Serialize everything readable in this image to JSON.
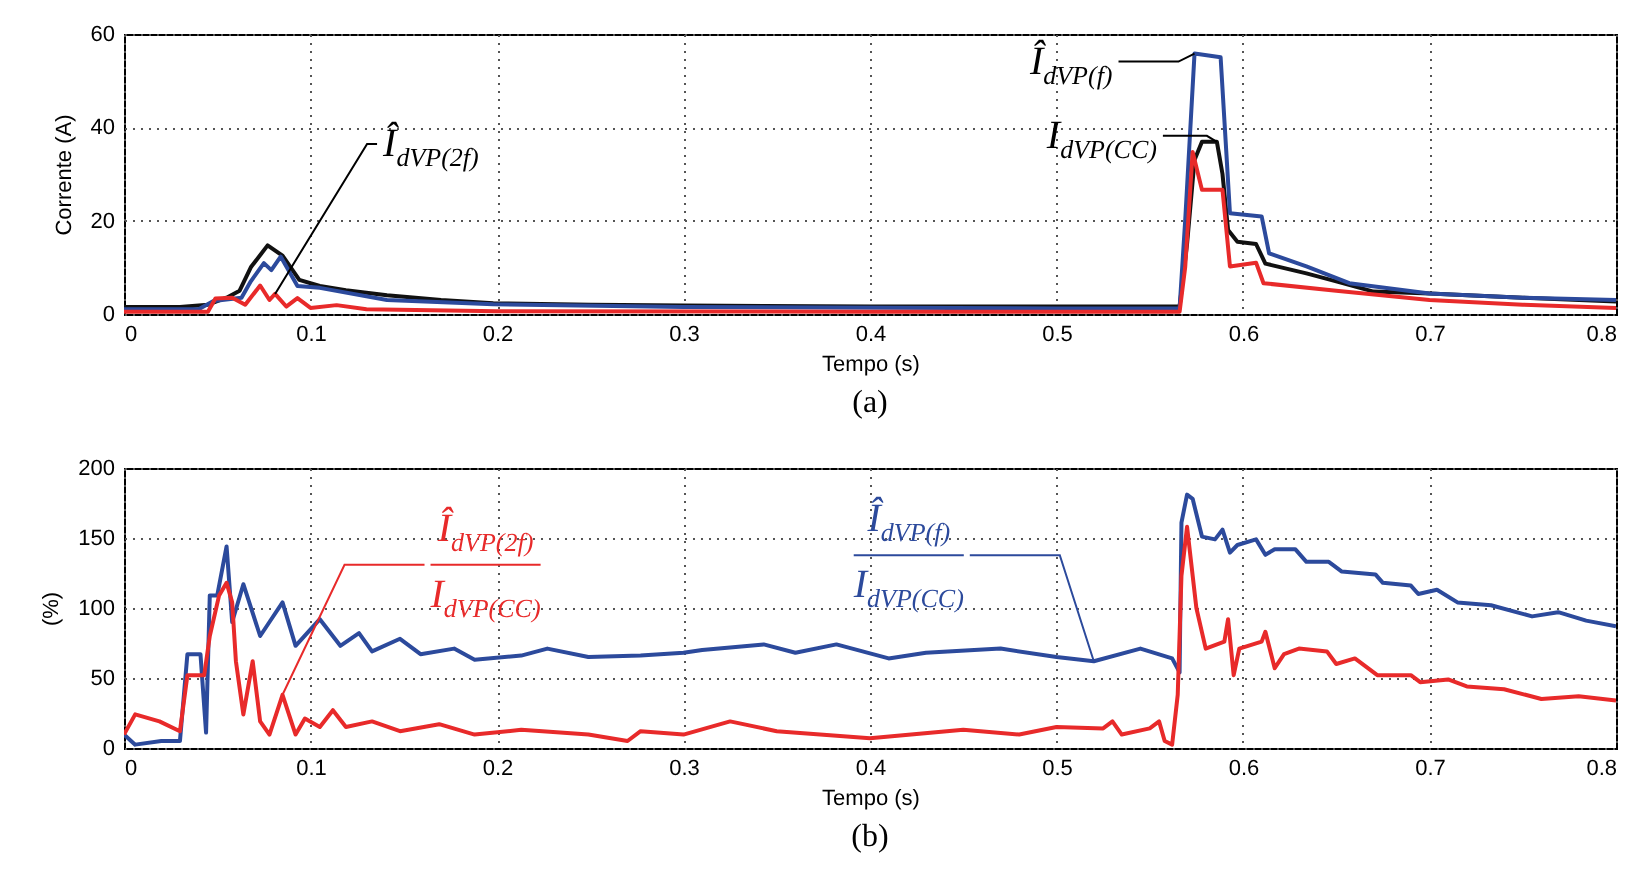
{
  "chart_data": [
    {
      "type": "line",
      "title": "(a)",
      "xlabel": "Tempo (s)",
      "ylabel": "Corrente (A)",
      "xlim": [
        0,
        0.8
      ],
      "ylim": [
        0,
        60
      ],
      "xticks": [
        0,
        0.1,
        0.2,
        0.3,
        0.4,
        0.5,
        0.6,
        0.7,
        0.8
      ],
      "yticks": [
        0,
        20,
        40,
        60
      ],
      "grid": true,
      "series": [
        {
          "name": "I$_{dVP(CC)}$",
          "color": "#111111",
          "x": [
            0,
            0.03,
            0.045,
            0.055,
            0.062,
            0.068,
            0.077,
            0.085,
            0.094,
            0.105,
            0.119,
            0.141,
            0.17,
            0.198,
            0.25,
            0.3,
            0.4,
            0.5,
            0.566,
            0.57,
            0.574,
            0.578,
            0.586,
            0.589,
            0.592,
            0.597,
            0.607,
            0.612,
            0.634,
            0.65,
            0.67,
            0.7,
            0.75,
            0.8
          ],
          "values": [
            1.5,
            1.5,
            2,
            3.5,
            5,
            10,
            14.7,
            12.5,
            7.3,
            6,
            5.1,
            4,
            3,
            2.3,
            2,
            1.8,
            1.6,
            1.6,
            1.6,
            15,
            33,
            36.9,
            36.9,
            30,
            18,
            15.5,
            15,
            10.8,
            8.7,
            7,
            4.8,
            4.4,
            3.5,
            2.7
          ]
        },
        {
          "name": "Î$_{dVP(f)}$",
          "color": "#2c4a9c",
          "x": [
            0,
            0.04,
            0.048,
            0.063,
            0.068,
            0.075,
            0.079,
            0.084,
            0.093,
            0.105,
            0.141,
            0.198,
            0.3,
            0.5,
            0.566,
            0.569,
            0.574,
            0.588,
            0.591,
            0.593,
            0.61,
            0.614,
            0.634,
            0.657,
            0.7,
            0.75,
            0.8
          ],
          "values": [
            1,
            1,
            2.8,
            3.5,
            7,
            10.9,
            9.4,
            12.3,
            6,
            5.6,
            3,
            2.1,
            1.5,
            1.2,
            1.2,
            20,
            55.8,
            55,
            35,
            21.6,
            20.9,
            13,
            10.2,
            6.6,
            4.4,
            3.5,
            3
          ]
        },
        {
          "name": "Î$_{dVP(2f)}$",
          "color": "#e82a2a",
          "x": [
            0,
            0.045,
            0.049,
            0.058,
            0.065,
            0.073,
            0.078,
            0.081,
            0.087,
            0.093,
            0.1,
            0.114,
            0.13,
            0.2,
            0.4,
            0.566,
            0.569,
            0.573,
            0.578,
            0.589,
            0.593,
            0.607,
            0.611,
            0.65,
            0.7,
            0.75,
            0.8
          ],
          "values": [
            0.5,
            0.5,
            3.3,
            3.5,
            2,
            6.1,
            3,
            4.3,
            1.6,
            3.4,
            1.3,
            1.9,
            1,
            0.6,
            0.5,
            0.5,
            10,
            34.7,
            26.6,
            26.6,
            10.2,
            11,
            6.6,
            5,
            3,
            2,
            1.3
          ]
        }
      ]
    },
    {
      "type": "line",
      "title": "(b)",
      "xlabel": "Tempo (s)",
      "ylabel": "(%)",
      "xlim": [
        0,
        0.8
      ],
      "ylim": [
        0,
        200
      ],
      "xticks": [
        0,
        0.1,
        0.2,
        0.3,
        0.4,
        0.5,
        0.6,
        0.7,
        0.8
      ],
      "yticks": [
        0,
        50,
        100,
        150,
        200
      ],
      "grid": true,
      "series": [
        {
          "name": "Î$_{dVP(f)}$\nI$_{dVP(CC)}$",
          "color": "#2c4a9c",
          "x": [
            0,
            0.006,
            0.02,
            0.03,
            0.034,
            0.041,
            0.044,
            0.046,
            0.05,
            0.055,
            0.058,
            0.064,
            0.073,
            0.078,
            0.085,
            0.092,
            0.105,
            0.116,
            0.126,
            0.133,
            0.148,
            0.159,
            0.177,
            0.188,
            0.213,
            0.227,
            0.249,
            0.277,
            0.3,
            0.31,
            0.343,
            0.36,
            0.382,
            0.41,
            0.43,
            0.47,
            0.5,
            0.52,
            0.545,
            0.562,
            0.566,
            0.567,
            0.57,
            0.573,
            0.578,
            0.585,
            0.589,
            0.593,
            0.597,
            0.607,
            0.612,
            0.617,
            0.628,
            0.634,
            0.646,
            0.653,
            0.671,
            0.675,
            0.69,
            0.694,
            0.704,
            0.715,
            0.733,
            0.755,
            0.769,
            0.784,
            0.8
          ],
          "values": [
            9.6,
            2.4,
            5,
            5,
            67,
            67,
            11,
            109,
            109,
            144,
            90,
            117,
            80,
            90,
            104,
            73,
            92,
            73,
            82,
            69,
            78,
            67,
            71,
            63,
            66,
            71,
            65,
            66,
            68,
            70,
            74,
            68,
            74,
            64,
            68,
            71,
            65,
            62,
            71,
            64,
            54,
            161,
            181,
            178,
            151,
            149,
            156,
            139.5,
            145,
            149,
            138,
            142,
            142,
            133,
            133,
            126,
            124,
            118,
            116,
            110,
            113,
            104,
            102,
            94,
            97,
            91,
            87
          ]
        },
        {
          "name": "Î$_{dVP(2f)}$\nI$_{dVP(CC)}$",
          "color": "#e82a2a",
          "x": [
            0,
            0.006,
            0.019,
            0.03,
            0.034,
            0.043,
            0.046,
            0.051,
            0.055,
            0.058,
            0.06,
            0.064,
            0.069,
            0.073,
            0.078,
            0.085,
            0.092,
            0.097,
            0.105,
            0.112,
            0.119,
            0.133,
            0.148,
            0.169,
            0.188,
            0.213,
            0.249,
            0.27,
            0.277,
            0.3,
            0.325,
            0.35,
            0.4,
            0.45,
            0.48,
            0.5,
            0.525,
            0.53,
            0.535,
            0.55,
            0.555,
            0.558,
            0.562,
            0.565,
            0.567,
            0.57,
            0.575,
            0.58,
            0.59,
            0.592,
            0.595,
            0.598,
            0.61,
            0.612,
            0.617,
            0.622,
            0.63,
            0.645,
            0.65,
            0.66,
            0.672,
            0.69,
            0.695,
            0.71,
            0.72,
            0.74,
            0.76,
            0.78,
            0.8
          ],
          "values": [
            9.6,
            24,
            19,
            12,
            52,
            52,
            80,
            109,
            118,
            104,
            62,
            24,
            62,
            19,
            9.6,
            38,
            9.6,
            21,
            15,
            27,
            15,
            19,
            12,
            17,
            9.6,
            13,
            9.6,
            5,
            12,
            9.6,
            19,
            12,
            7,
            13,
            9.6,
            15,
            14,
            19,
            9.6,
            14,
            19,
            5,
            2.4,
            38,
            123,
            158,
            100,
            71,
            76,
            92,
            52,
            71,
            76,
            83,
            57,
            67,
            71,
            69,
            60,
            64,
            52,
            52,
            47,
            49,
            44,
            42,
            35,
            37,
            34
          ]
        }
      ]
    }
  ]
}
